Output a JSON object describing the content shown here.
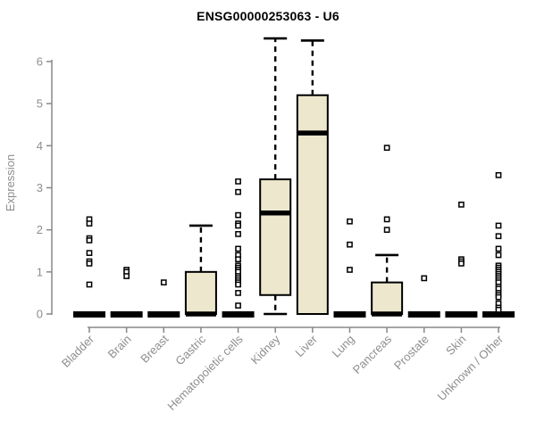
{
  "chart_data": {
    "type": "boxplot",
    "title": "ENSG00000253063 - U6",
    "ylabel": "Expression",
    "xlabel": "",
    "ylim": [
      0,
      6
    ],
    "yticks": [
      0,
      1,
      2,
      3,
      4,
      5,
      6
    ],
    "grid": false,
    "legend": "none",
    "colors": {
      "box_fill": "#ECE7CD",
      "box_border": "#000000",
      "median": "#000000",
      "whisker": "#000000",
      "outlier_fill": "#FFFFFF",
      "outlier_border": "#000000",
      "axis_line": "#888888",
      "axis_text": "#8E8E8E",
      "title_text": "#000000",
      "background": "#FFFFFF"
    },
    "categories": [
      "Bladder",
      "Brain",
      "Breast",
      "Gastric",
      "Hematopoietic cells",
      "Kidney",
      "Liver",
      "Lung",
      "Pancreas",
      "Prostate",
      "Skin",
      "Unknown / Other"
    ],
    "boxes": [
      {
        "category": "Bladder",
        "q1": 0,
        "median": 0,
        "q3": 0,
        "whisker_low": 0,
        "whisker_high": 0,
        "outliers": [
          2.25,
          2.15,
          1.8,
          1.75,
          1.45,
          1.25,
          1.2,
          0.7
        ]
      },
      {
        "category": "Brain",
        "q1": 0,
        "median": 0,
        "q3": 0,
        "whisker_low": 0,
        "whisker_high": 0,
        "outliers": [
          1.05,
          1.0,
          0.9
        ]
      },
      {
        "category": "Breast",
        "q1": 0,
        "median": 0,
        "q3": 0,
        "whisker_low": 0,
        "whisker_high": 0,
        "outliers": [
          0.75
        ]
      },
      {
        "category": "Gastric",
        "q1": 0,
        "median": 0,
        "q3": 1.0,
        "whisker_low": 0,
        "whisker_high": 2.1,
        "outliers": []
      },
      {
        "category": "Hematopoietic cells",
        "q1": 0,
        "median": 0,
        "q3": 0,
        "whisker_low": 0,
        "whisker_high": 0,
        "outliers": [
          3.15,
          2.9,
          2.35,
          2.15,
          2.1,
          1.9,
          1.55,
          1.4,
          1.3,
          1.15,
          1.1,
          1.05,
          1.0,
          0.9,
          0.85,
          0.8,
          0.75,
          0.7,
          0.5,
          0.2
        ]
      },
      {
        "category": "Kidney",
        "q1": 0.45,
        "median": 2.4,
        "q3": 3.2,
        "whisker_low": 0,
        "whisker_high": 6.55,
        "outliers": []
      },
      {
        "category": "Liver",
        "q1": 0,
        "median": 4.3,
        "q3": 5.2,
        "whisker_low": 0,
        "whisker_high": 6.5,
        "outliers": []
      },
      {
        "category": "Lung",
        "q1": 0,
        "median": 0,
        "q3": 0,
        "whisker_low": 0,
        "whisker_high": 0,
        "outliers": [
          2.2,
          1.65,
          1.05
        ]
      },
      {
        "category": "Pancreas",
        "q1": 0,
        "median": 0,
        "q3": 0.75,
        "whisker_low": 0,
        "whisker_high": 1.4,
        "outliers": [
          3.95,
          2.25,
          2.0
        ]
      },
      {
        "category": "Prostate",
        "q1": 0,
        "median": 0,
        "q3": 0,
        "whisker_low": 0,
        "whisker_high": 0,
        "outliers": [
          0.85
        ]
      },
      {
        "category": "Skin",
        "q1": 0,
        "median": 0,
        "q3": 0,
        "whisker_low": 0,
        "whisker_high": 0,
        "outliers": [
          2.6,
          1.3,
          1.25,
          1.2
        ]
      },
      {
        "category": "Unknown / Other",
        "q1": 0,
        "median": 0,
        "q3": 0,
        "whisker_low": 0,
        "whisker_high": 0,
        "outliers": [
          3.3,
          2.1,
          1.85,
          1.55,
          1.4,
          1.15,
          1.1,
          1.05,
          1.0,
          0.95,
          0.9,
          0.85,
          0.8,
          0.75,
          0.65,
          0.6,
          0.5,
          0.45,
          0.4,
          0.25,
          0.15,
          0.1
        ]
      }
    ]
  }
}
